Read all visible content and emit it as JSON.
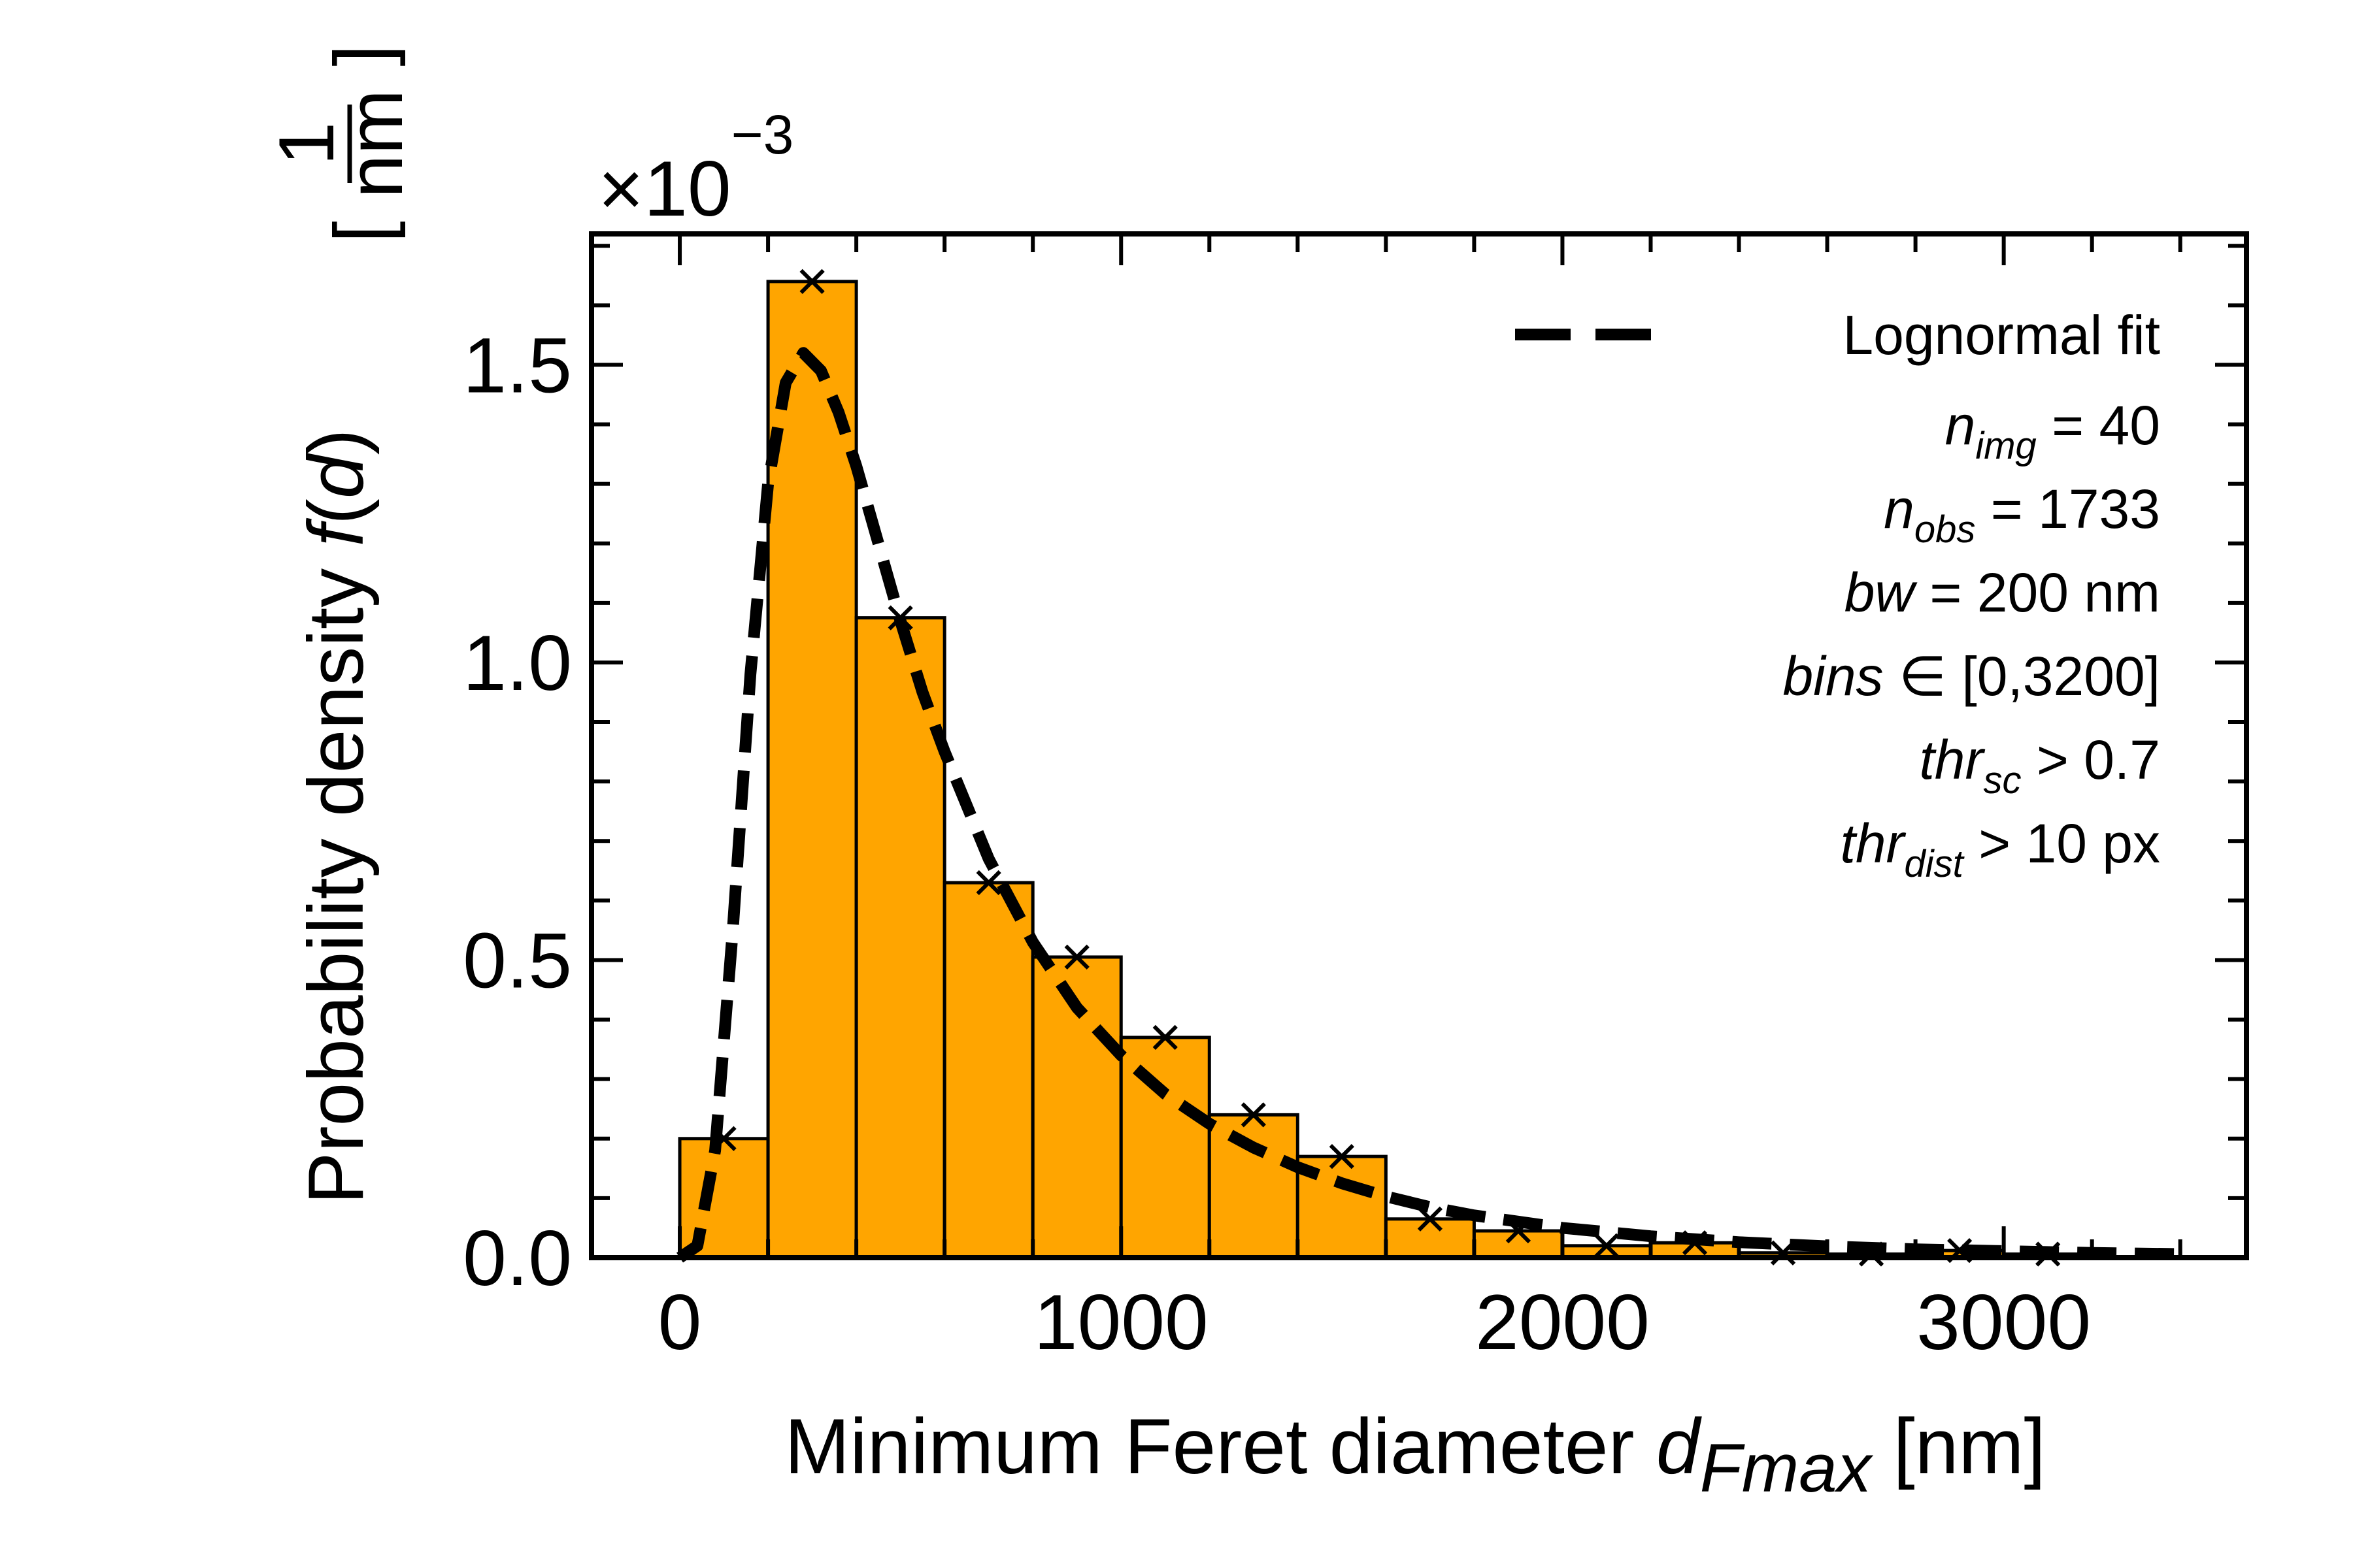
{
  "chart_data": {
    "type": "bar",
    "xlabel": {
      "prefix": "Minimum Feret diameter ",
      "var": "d",
      "sub": "Fmax",
      "unit": " [nm]"
    },
    "ylabel": {
      "prefix": "Probability density ",
      "func": "f",
      "open": "(",
      "arg": "d",
      "close": ")",
      "unit_num": "1",
      "unit_den": "nm"
    },
    "offset_text": {
      "base": "×10",
      "exp": "−3"
    },
    "xlim": [
      -200,
      3550
    ],
    "ylim": [
      0,
      1.72
    ],
    "xticks": [
      0,
      1000,
      2000,
      3000
    ],
    "xtick_labels": [
      "0",
      "1000",
      "2000",
      "3000"
    ],
    "yticks": [
      0.0,
      0.5,
      1.0,
      1.5
    ],
    "ytick_labels": [
      "0.0",
      "0.5",
      "1.0",
      "1.5"
    ],
    "bar_color": "#FFA500",
    "bar_edge_color": "#000000",
    "bins": [
      {
        "x0": 0,
        "x1": 200,
        "value": 0.2
      },
      {
        "x0": 200,
        "x1": 400,
        "value": 1.64
      },
      {
        "x0": 400,
        "x1": 600,
        "value": 1.075
      },
      {
        "x0": 600,
        "x1": 800,
        "value": 0.63
      },
      {
        "x0": 800,
        "x1": 1000,
        "value": 0.505
      },
      {
        "x0": 1000,
        "x1": 1200,
        "value": 0.37
      },
      {
        "x0": 1200,
        "x1": 1400,
        "value": 0.24
      },
      {
        "x0": 1400,
        "x1": 1600,
        "value": 0.17
      },
      {
        "x0": 1600,
        "x1": 1800,
        "value": 0.065
      },
      {
        "x0": 1800,
        "x1": 2000,
        "value": 0.045
      },
      {
        "x0": 2000,
        "x1": 2200,
        "value": 0.02
      },
      {
        "x0": 2200,
        "x1": 2400,
        "value": 0.025
      },
      {
        "x0": 2400,
        "x1": 2600,
        "value": 0.008
      },
      {
        "x0": 2600,
        "x1": 2800,
        "value": 0.006
      },
      {
        "x0": 2800,
        "x1": 3000,
        "value": 0.012
      },
      {
        "x0": 3000,
        "x1": 3200,
        "value": 0.006
      }
    ],
    "markers": {
      "symbol": "x",
      "x": [
        100,
        300,
        500,
        700,
        900,
        1100,
        1300,
        1500,
        1700,
        1900,
        2100,
        2300,
        2500,
        2700,
        2900,
        3100
      ],
      "y": [
        0.2,
        1.64,
        1.075,
        0.63,
        0.505,
        0.37,
        0.24,
        0.17,
        0.065,
        0.045,
        0.02,
        0.025,
        0.008,
        0.006,
        0.012,
        0.006
      ]
    },
    "fit": {
      "name": "Lognormal fit",
      "x": [
        0,
        40,
        80,
        120,
        160,
        200,
        240,
        280,
        320,
        360,
        400,
        450,
        500,
        550,
        600,
        700,
        800,
        900,
        1000,
        1100,
        1200,
        1300,
        1400,
        1500,
        1600,
        1700,
        1800,
        2000,
        2200,
        2400,
        2600,
        2800,
        3000,
        3200,
        3400
      ],
      "y": [
        0.0,
        0.02,
        0.18,
        0.55,
        0.98,
        1.3,
        1.47,
        1.52,
        1.49,
        1.42,
        1.33,
        1.2,
        1.07,
        0.95,
        0.85,
        0.67,
        0.53,
        0.42,
        0.34,
        0.275,
        0.225,
        0.185,
        0.152,
        0.125,
        0.103,
        0.085,
        0.071,
        0.05,
        0.036,
        0.026,
        0.019,
        0.014,
        0.011,
        0.008,
        0.006
      ]
    },
    "legend_position": "top-right",
    "annotations": [
      {
        "var": "n",
        "sub": "img",
        "rest": " = 40"
      },
      {
        "var": "n",
        "sub": "obs",
        "rest": " = 1733"
      },
      {
        "var": "bw",
        "sub": "",
        "rest": " = 200 nm"
      },
      {
        "var": "bins",
        "sub": "",
        "rest": " ∈ [0,3200]"
      },
      {
        "var": "thr",
        "sub": "sc",
        "rest": " >  0.7"
      },
      {
        "var": "thr",
        "sub": "dist",
        "rest": " > 10 px"
      }
    ]
  }
}
